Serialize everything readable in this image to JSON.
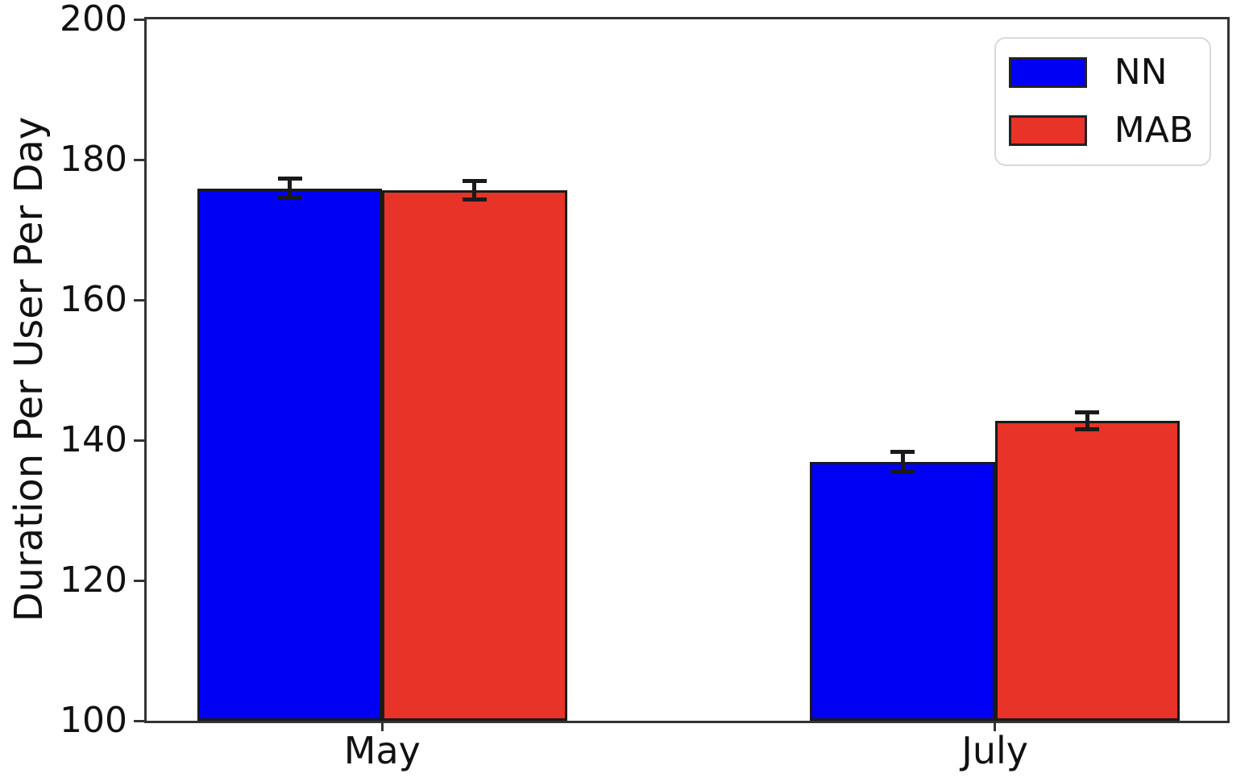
{
  "chart_data": {
    "type": "bar",
    "categories": [
      "May",
      "July"
    ],
    "series": [
      {
        "name": "NN",
        "color": "#0000f5",
        "values": [
          175.9,
          136.9
        ],
        "errors": [
          1.4,
          1.4
        ]
      },
      {
        "name": "MAB",
        "color": "#e83328",
        "values": [
          175.6,
          142.8
        ],
        "errors": [
          1.3,
          1.2
        ]
      }
    ],
    "title": "",
    "xlabel": "",
    "ylabel": "Duration Per User Per Day",
    "ylim": [
      100,
      200
    ],
    "yticks": [
      100,
      120,
      140,
      160,
      180,
      200
    ],
    "grid": false,
    "bar_edge_color": "#1a1a1a",
    "legend_position": "upper right",
    "layout": {
      "group_center_frac": [
        0.218,
        0.785
      ],
      "bar_width_frac": 0.171
    }
  }
}
